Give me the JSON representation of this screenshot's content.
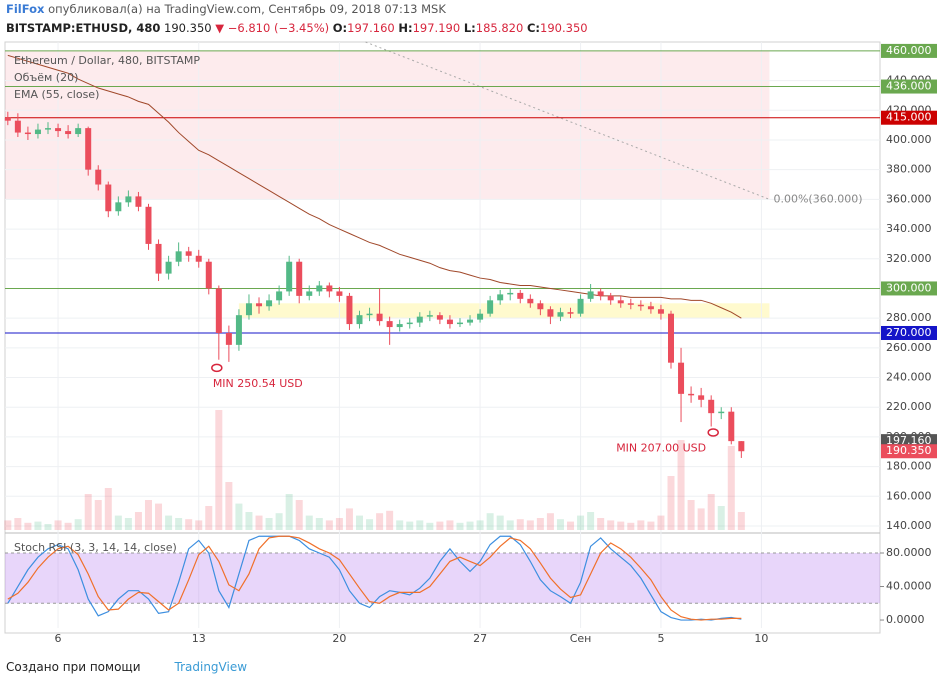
{
  "header": {
    "author": "FilFox",
    "published": "опубликовал(а) на TradingView.com, Сентябрь 09, 2018 07:13 MSK",
    "symbol": "BITSTAMP:ETHUSD, 480",
    "last": "190.350",
    "change": "▼ −6.810 (−3.45%)",
    "ohlc": [
      {
        "key": "O:",
        "value": "197.160"
      },
      {
        "key": "H:",
        "value": "197.190"
      },
      {
        "key": "L:",
        "value": "185.820"
      },
      {
        "key": "C:",
        "value": "190.350"
      }
    ]
  },
  "footer": {
    "created": "Создано при помощи",
    "brand": "TradingView"
  },
  "chart_data": [
    {
      "type": "candlestick",
      "title": "Ethereum / Dollar, 480, BITSTAMP",
      "x": [
        3.5,
        4,
        4.5,
        5,
        5.5,
        6,
        6.5,
        7,
        7.5,
        8,
        8.5,
        9,
        9.5,
        10,
        10.5,
        11,
        11.5,
        12,
        12.5,
        13,
        13.5,
        14,
        14.5,
        15,
        15.5,
        16,
        16.5,
        17,
        17.5,
        18,
        18.5,
        19,
        19.5,
        20,
        20.5,
        21,
        21.5,
        22,
        22.5,
        23,
        23.5,
        24,
        24.5,
        25,
        25.5,
        26,
        26.5,
        27,
        27.5,
        28,
        28.5,
        29,
        29.5,
        30,
        30.5,
        31,
        31.5,
        32,
        32.5,
        33,
        33.5,
        34,
        34.5,
        35,
        35.5,
        36,
        36.5,
        37,
        37.5,
        38,
        38.5,
        39,
        39.5,
        40
      ],
      "open": [
        415,
        413,
        405,
        404,
        407,
        408,
        406,
        404,
        408,
        380,
        370,
        352,
        358,
        362,
        355,
        330,
        310,
        318,
        325,
        322,
        318,
        300,
        270,
        262,
        282,
        290,
        288,
        292,
        298,
        318,
        295,
        298,
        302,
        298,
        295,
        276,
        282,
        283,
        278,
        274,
        276,
        277,
        281,
        282,
        279,
        276,
        277,
        279,
        283,
        292,
        296,
        297,
        293,
        290,
        286,
        281,
        284,
        283,
        293,
        298,
        295,
        292,
        290,
        289,
        288,
        286,
        283,
        250,
        229,
        228,
        225,
        216,
        217,
        197.16
      ],
      "high": [
        419,
        418,
        409,
        411,
        412,
        411,
        410,
        411,
        409,
        383,
        372,
        362,
        366,
        365,
        357,
        333,
        322,
        331,
        328,
        326,
        320,
        302,
        275,
        286,
        296,
        294,
        296,
        302,
        322,
        320,
        302,
        305,
        304,
        301,
        297,
        285,
        287,
        300,
        281,
        279,
        280,
        284,
        285,
        284,
        282,
        280,
        282,
        286,
        295,
        299,
        300,
        299,
        296,
        292,
        288,
        287,
        287,
        296,
        303,
        300,
        297,
        295,
        293,
        292,
        291,
        289,
        285,
        260,
        234,
        233,
        228,
        220,
        220,
        197.19
      ],
      "low": [
        410,
        402,
        400,
        401,
        404,
        402,
        401,
        402,
        376,
        366,
        348,
        349,
        355,
        352,
        326,
        305,
        306,
        315,
        318,
        314,
        296,
        252,
        250.54,
        258,
        279,
        283,
        285,
        289,
        295,
        290,
        292,
        295,
        294,
        291,
        272,
        273,
        278,
        275,
        262,
        271,
        273,
        274,
        278,
        276,
        273,
        274,
        275,
        277,
        281,
        289,
        292,
        290,
        287,
        282,
        276,
        278,
        280,
        281,
        291,
        292,
        289,
        287,
        286,
        285,
        283,
        279,
        246,
        210,
        223,
        220,
        207,
        212,
        195,
        185.82
      ],
      "close": [
        413,
        405,
        404,
        407,
        408,
        406,
        404,
        408,
        380,
        370,
        352,
        358,
        362,
        355,
        330,
        310,
        318,
        325,
        322,
        318,
        300,
        270,
        262,
        282,
        290,
        288,
        292,
        298,
        318,
        295,
        298,
        302,
        298,
        295,
        276,
        282,
        283,
        278,
        274,
        276,
        277,
        281,
        282,
        279,
        276,
        277,
        279,
        283,
        292,
        296,
        297,
        293,
        290,
        286,
        281,
        284,
        283,
        293,
        298,
        295,
        292,
        290,
        289,
        288,
        286,
        283,
        250,
        229,
        228,
        225,
        216,
        217,
        197.16,
        190.35
      ],
      "up_color": "#53b987",
      "down_color": "#eb4d5c",
      "volume": {
        "name": "Объём (20)",
        "lim": [
          0,
          100
        ],
        "values": [
          8,
          10,
          6,
          7,
          5,
          8,
          6,
          9,
          30,
          25,
          35,
          12,
          10,
          15,
          25,
          22,
          12,
          10,
          9,
          8,
          20,
          100,
          40,
          22,
          15,
          12,
          10,
          14,
          30,
          25,
          12,
          10,
          8,
          10,
          18,
          12,
          9,
          14,
          16,
          8,
          7,
          8,
          6,
          7,
          8,
          6,
          7,
          8,
          14,
          12,
          8,
          9,
          8,
          10,
          14,
          9,
          7,
          12,
          15,
          10,
          8,
          7,
          6,
          8,
          7,
          12,
          45,
          75,
          25,
          18,
          30,
          20,
          70,
          15
        ]
      },
      "ema": {
        "name": "EMA (55, close)",
        "color": "#a0482a",
        "values": [
          457,
          455,
          453,
          451,
          449,
          447,
          445,
          441,
          438,
          435,
          433,
          431,
          429,
          426,
          424,
          418,
          412,
          405,
          399,
          393,
          390,
          386,
          382,
          378,
          374,
          370,
          366,
          362,
          358,
          354,
          350,
          347,
          343,
          340,
          337,
          334,
          331,
          329,
          326,
          323,
          321,
          319,
          317,
          314,
          312,
          311,
          309,
          307,
          306,
          304,
          303,
          302,
          302,
          301,
          300,
          299,
          298,
          297,
          296,
          295,
          295,
          295,
          294,
          294,
          294,
          294,
          293,
          293,
          292,
          292,
          290,
          287,
          284,
          280
        ]
      },
      "xlim": [
        3.36,
        46.9
      ],
      "xticks": [
        6,
        13,
        20,
        27,
        {
          "value": 32,
          "label": "Сен"
        },
        {
          "value": 36,
          "label": "5"
        },
        {
          "value": 41,
          "label": "10"
        }
      ],
      "ylim": [
        137.3,
        466
      ],
      "yticks": [
        {
          "value": 140,
          "label": "140.000"
        },
        {
          "value": 160,
          "label": "160.000"
        },
        {
          "value": 180,
          "label": "180.000"
        },
        {
          "value": 200,
          "label": "200.000"
        },
        {
          "value": 220,
          "label": "220.000"
        },
        {
          "value": 240,
          "label": "240.000"
        },
        {
          "value": 260,
          "label": "260.000"
        },
        {
          "value": 280,
          "label": "280.000"
        },
        {
          "value": 300,
          "label": "300.000"
        },
        {
          "value": 320,
          "label": "320.000"
        },
        {
          "value": 340,
          "label": "340.000"
        },
        {
          "value": 360,
          "label": "360.000"
        },
        {
          "value": 380,
          "label": "380.000"
        },
        {
          "value": 400,
          "label": "400.000"
        },
        {
          "value": 420,
          "label": "420.000"
        },
        {
          "value": 440,
          "label": "440.000"
        }
      ],
      "grid": true,
      "zones": [
        {
          "from": 360,
          "to": 460,
          "start": 3.36,
          "end": 41.4,
          "color": "rgba(235,77,92,0.11)"
        },
        {
          "from": 280,
          "to": 290,
          "start": 15,
          "end": 41.4,
          "color": "rgba(255,235,59,0.25)"
        }
      ],
      "levels": [
        {
          "value": 460,
          "label": "460.000",
          "color": "#6aa84f"
        },
        {
          "value": 436,
          "label": "436.000",
          "color": "#6aa84f"
        },
        {
          "value": 415,
          "label": "415.000",
          "color": "#cc0000"
        },
        {
          "value": 300,
          "label": "300.000",
          "color": "#6aa84f"
        },
        {
          "value": 270,
          "label": "270.000",
          "color": "#1515c8"
        }
      ],
      "price_marks": [
        {
          "value": 197.16,
          "label": "197.160",
          "color": "#555555"
        },
        {
          "value": 190.35,
          "label": "190.350",
          "color": "#eb4d5c"
        }
      ],
      "trendline": {
        "x": [
          21.3,
          41.4
        ],
        "y": [
          466,
          360
        ],
        "label": "0.00%(360.000)"
      },
      "annotations": [
        {
          "text": "MIN 250.54 USD",
          "x": 13.9,
          "y": 250.54
        },
        {
          "text": "MIN 207.00 USD",
          "x": 38.6,
          "y": 207
        }
      ]
    },
    {
      "type": "line",
      "title": "Stoch RSI (3, 3, 14, 14, close)",
      "series": [
        {
          "color": "#3d8fe0",
          "values": [
            20,
            40,
            60,
            75,
            85,
            90,
            85,
            60,
            25,
            5,
            10,
            25,
            35,
            35,
            25,
            8,
            10,
            45,
            85,
            95,
            80,
            35,
            15,
            55,
            95,
            100,
            100,
            100,
            100,
            95,
            85,
            80,
            75,
            60,
            35,
            20,
            15,
            28,
            35,
            33,
            30,
            38,
            50,
            70,
            85,
            70,
            58,
            70,
            90,
            100,
            100,
            90,
            70,
            48,
            35,
            28,
            20,
            45,
            88,
            98,
            85,
            75,
            65,
            50,
            30,
            10,
            3,
            0,
            0,
            1,
            0,
            2,
            3,
            1
          ]
        },
        {
          "color": "#f0702a",
          "values": [
            25,
            32,
            45,
            62,
            75,
            85,
            88,
            78,
            55,
            28,
            12,
            13,
            25,
            33,
            32,
            22,
            12,
            20,
            48,
            78,
            88,
            70,
            42,
            35,
            55,
            85,
            98,
            100,
            100,
            98,
            92,
            85,
            80,
            72,
            55,
            38,
            22,
            20,
            28,
            33,
            33,
            33,
            40,
            55,
            70,
            75,
            70,
            65,
            75,
            88,
            98,
            95,
            85,
            68,
            50,
            37,
            27,
            30,
            55,
            80,
            92,
            85,
            75,
            62,
            48,
            28,
            12,
            4,
            1,
            0,
            1,
            1,
            2,
            2
          ]
        }
      ],
      "ylim": [
        -9.5,
        99.1
      ],
      "yticks": [
        {
          "value": 0,
          "label": "0.0000"
        },
        {
          "value": 40,
          "label": "40.0000"
        },
        {
          "value": 80,
          "label": "80.0000"
        }
      ],
      "band": {
        "from": 20,
        "to": 80,
        "color": "rgba(178,120,240,0.3)"
      }
    }
  ]
}
